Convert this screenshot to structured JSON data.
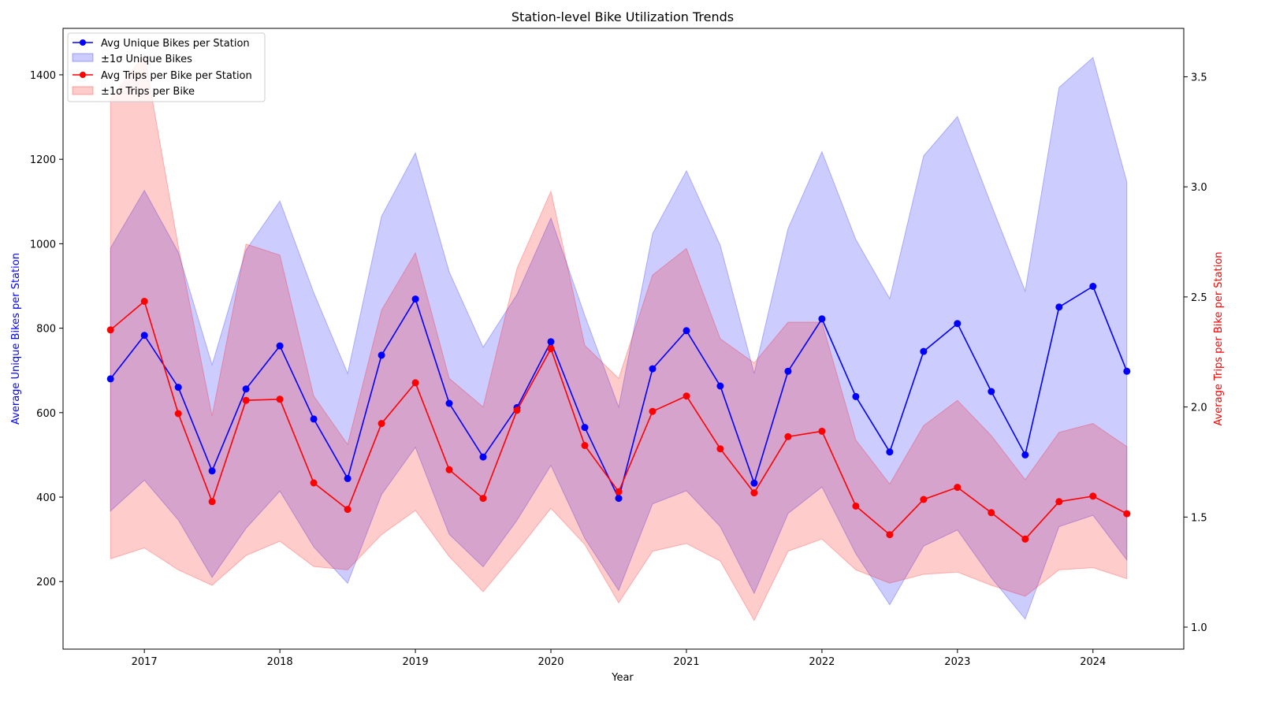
{
  "chart_data": {
    "type": "line",
    "title": "Station-level Bike Utilization Trends",
    "xlabel": "Year",
    "ylabel_left": "Average Unique Bikes per Station",
    "ylabel_right": "Average Trips per Bike per Station",
    "xlim": [
      2016.4,
      2024.67
    ],
    "ylim_left": [
      40,
      1510
    ],
    "ylim_right": [
      0.9,
      3.72
    ],
    "x_ticks": [
      2017,
      2018,
      2019,
      2020,
      2021,
      2022,
      2023,
      2024
    ],
    "x_tick_labels": [
      "2017",
      "2018",
      "2019",
      "2020",
      "2021",
      "2022",
      "2023",
      "2024"
    ],
    "y_left_ticks": [
      200,
      400,
      600,
      800,
      1000,
      1200,
      1400
    ],
    "y_left_tick_labels": [
      "200",
      "400",
      "600",
      "800",
      "1000",
      "1200",
      "1400"
    ],
    "y_right_ticks": [
      1.0,
      1.5,
      2.0,
      2.5,
      3.0,
      3.5
    ],
    "y_right_tick_labels": [
      "1.0",
      "1.5",
      "2.0",
      "2.5",
      "3.0",
      "3.5"
    ],
    "x": [
      "2016-10",
      "2017-01",
      "2017-04",
      "2017-07",
      "2017-11",
      "2018-02",
      "2018-05",
      "2018-08",
      "2018-11",
      "2019-02",
      "2019-05",
      "2019-08",
      "2019-11",
      "2020-02",
      "2020-05",
      "2020-08",
      "2020-11",
      "2021-02",
      "2021-05",
      "2021-08",
      "2021-11",
      "2022-02",
      "2022-05",
      "2022-08",
      "2022-11",
      "2023-02",
      "2023-05",
      "2023-08",
      "2023-11",
      "2024-02",
      "2024-05"
    ],
    "x_numeric": [
      2016.75,
      2017.0,
      2017.25,
      2017.5,
      2017.75,
      2018.0,
      2018.25,
      2018.5,
      2018.75,
      2019.0,
      2019.25,
      2019.5,
      2019.75,
      2020.0,
      2020.25,
      2020.5,
      2020.75,
      2021.0,
      2021.25,
      2021.5,
      2021.75,
      2022.0,
      2022.25,
      2022.5,
      2022.75,
      2023.0,
      2023.25,
      2023.5,
      2023.75,
      2024.0,
      2024.25
    ],
    "series": [
      {
        "name": "Avg Unique Bikes per Station",
        "axis": "left",
        "color": "#0000ff",
        "values": [
          680,
          783,
          660,
          462,
          656,
          758,
          585,
          444,
          736,
          869,
          622,
          495,
          612,
          768,
          565,
          397,
          704,
          794,
          663,
          433,
          698,
          822,
          638,
          507,
          745,
          811,
          650,
          500,
          850,
          899,
          698
        ],
        "upper": [
          990,
          1126,
          980,
          713,
          985,
          1101,
          884,
          693,
          1065,
          1215,
          933,
          755,
          880,
          1061,
          830,
          613,
          1024,
          1173,
          996,
          693,
          1036,
          1218,
          1010,
          870,
          1208,
          1301,
          1092,
          888,
          1370,
          1441,
          1146
        ],
        "lower": [
          367,
          440,
          346,
          210,
          326,
          414,
          282,
          196,
          406,
          518,
          312,
          235,
          345,
          475,
          302,
          179,
          384,
          415,
          330,
          172,
          361,
          424,
          266,
          145,
          284,
          322,
          209,
          111,
          330,
          357,
          251
        ]
      },
      {
        "name": "Avg Trips per Bike per Station",
        "axis": "right",
        "color": "#ff0000",
        "values": [
          2.35,
          2.48,
          1.97,
          1.57,
          2.03,
          2.035,
          1.655,
          1.535,
          1.925,
          2.11,
          1.715,
          1.585,
          1.985,
          2.265,
          1.825,
          1.615,
          1.98,
          2.05,
          1.81,
          1.61,
          1.865,
          1.89,
          1.55,
          1.42,
          1.58,
          1.635,
          1.52,
          1.4,
          1.57,
          1.595,
          1.515
        ],
        "upper": [
          3.4,
          3.6,
          2.73,
          1.96,
          2.74,
          2.69,
          2.05,
          1.83,
          2.44,
          2.7,
          2.13,
          2.0,
          2.63,
          2.98,
          2.28,
          2.13,
          2.6,
          2.72,
          2.31,
          2.2,
          2.385,
          2.385,
          1.85,
          1.65,
          1.915,
          2.03,
          1.87,
          1.67,
          1.885,
          1.925,
          1.82
        ],
        "lower": [
          1.31,
          1.36,
          1.26,
          1.19,
          1.325,
          1.39,
          1.275,
          1.26,
          1.42,
          1.53,
          1.32,
          1.16,
          1.345,
          1.54,
          1.375,
          1.11,
          1.345,
          1.38,
          1.3,
          1.03,
          1.345,
          1.4,
          1.26,
          1.2,
          1.24,
          1.25,
          1.19,
          1.14,
          1.26,
          1.27,
          1.22
        ]
      }
    ],
    "legend": {
      "placement": "upper-left",
      "entries": [
        {
          "label": "Avg Unique Bikes per Station",
          "kind": "line-marker",
          "color": "#0000ff"
        },
        {
          "label": "±1σ Unique Bikes",
          "kind": "band",
          "color": "#0000ff"
        },
        {
          "label": "Avg Trips per Bike per Station",
          "kind": "line-marker",
          "color": "#ff0000"
        },
        {
          "label": "±1σ Trips per Bike",
          "kind": "band",
          "color": "#ff0000"
        }
      ]
    },
    "band_opacity": 0.2,
    "grid": false
  }
}
